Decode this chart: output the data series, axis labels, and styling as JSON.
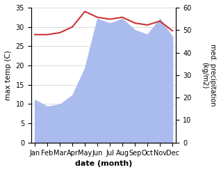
{
  "months": [
    "Jan",
    "Feb",
    "Mar",
    "Apr",
    "May",
    "Jun",
    "Jul",
    "Aug",
    "Sep",
    "Oct",
    "Nov",
    "Dec"
  ],
  "month_indices": [
    0,
    1,
    2,
    3,
    4,
    5,
    6,
    7,
    8,
    9,
    10,
    11
  ],
  "max_temp": [
    28.0,
    28.0,
    28.5,
    30.0,
    34.0,
    32.5,
    32.0,
    32.5,
    31.0,
    30.5,
    31.5,
    29.0
  ],
  "precipitation": [
    19,
    16,
    17,
    21,
    33,
    55,
    53,
    55,
    50,
    48,
    55,
    47
  ],
  "temp_ylim": [
    0,
    35
  ],
  "precip_ylim": [
    0,
    60
  ],
  "temp_color": "#cc3333",
  "precip_fill_color": "#aabbee",
  "xlabel": "date (month)",
  "ylabel_left": "max temp (C)",
  "ylabel_right": "med. precipitation\n(kg/m2)",
  "bg_color": "#ffffff",
  "grid_color": "#cccccc"
}
